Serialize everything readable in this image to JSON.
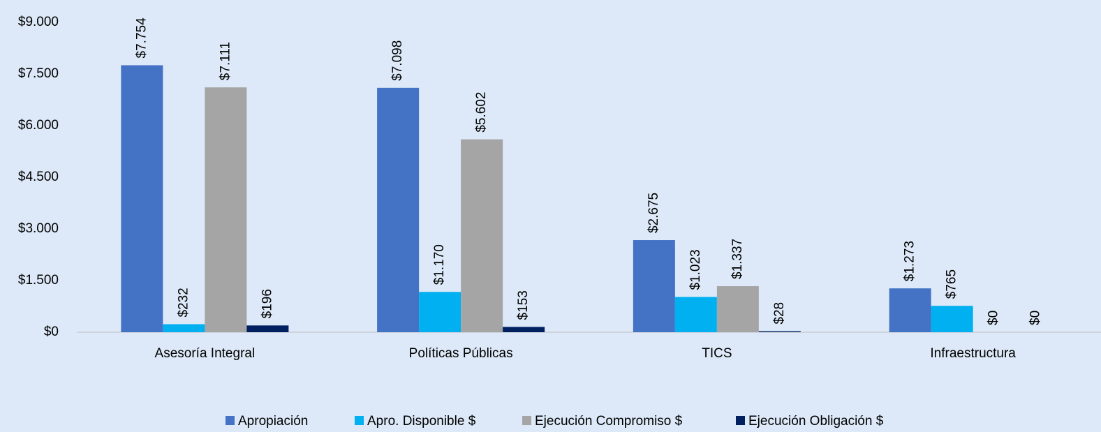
{
  "chart_data": {
    "type": "bar",
    "categories": [
      "Asesoría Integral",
      "Políticas Públicas",
      "TICS",
      "Infraestructura"
    ],
    "series": [
      {
        "name": "Apropiación",
        "color": "#4472c4",
        "values": [
          7754,
          7098,
          2675,
          1273
        ],
        "value_labels": [
          "$7.754",
          "$7.098",
          "$2.675",
          "$1.273"
        ]
      },
      {
        "name": "Apro. Disponible $",
        "color": "#00b0f0",
        "values": [
          232,
          1170,
          1023,
          765
        ],
        "value_labels": [
          "$232",
          "$1.170",
          "$1.023",
          "$765"
        ]
      },
      {
        "name": "Ejecución Compromiso $",
        "color": "#a5a5a5",
        "values": [
          7111,
          5602,
          1337,
          0
        ],
        "value_labels": [
          "$7.111",
          "$5.602",
          "$1.337",
          "$0"
        ]
      },
      {
        "name": "Ejecución Obligación $",
        "color": "#002060",
        "values": [
          196,
          153,
          28,
          0
        ],
        "value_labels": [
          "$196",
          "$153",
          "$28",
          "$0"
        ]
      }
    ],
    "ylim": [
      0,
      9000
    ],
    "yticks": [
      {
        "value": 0,
        "label": "$0"
      },
      {
        "value": 1500,
        "label": "$1.500"
      },
      {
        "value": 3000,
        "label": "$3.000"
      },
      {
        "value": 4500,
        "label": "$4.500"
      },
      {
        "value": 6000,
        "label": "$6.000"
      },
      {
        "value": 7500,
        "label": "$7.500"
      },
      {
        "value": 9000,
        "label": "$9.000"
      }
    ],
    "grid": false,
    "legend": "bottom"
  }
}
